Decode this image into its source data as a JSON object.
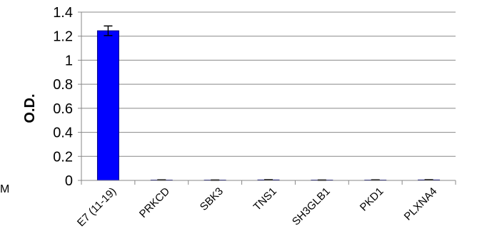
{
  "chart_data": {
    "type": "bar",
    "title": "",
    "xlabel": "",
    "ylabel": "O.D.",
    "ylim": [
      0,
      1.4
    ],
    "yticks": [
      "0",
      "0.2",
      "0.4",
      "0.6",
      "0.8",
      "1",
      "1.2",
      "1.4"
    ],
    "grid": true,
    "categories": [
      "E7 (11-19)",
      "PRKCD",
      "SBK3",
      "TNS1",
      "SH3GLB1",
      "PKD1",
      "PLXNA4"
    ],
    "values": [
      1.245,
      0.003,
      0.002,
      0.004,
      0.002,
      0.003,
      0.004
    ],
    "errors": [
      0.04,
      0.002,
      0.002,
      0.002,
      0.002,
      0.002,
      0.002
    ],
    "bar_color": "#0000ff",
    "bar_edge_color": "#000080",
    "stray_text": "M"
  }
}
